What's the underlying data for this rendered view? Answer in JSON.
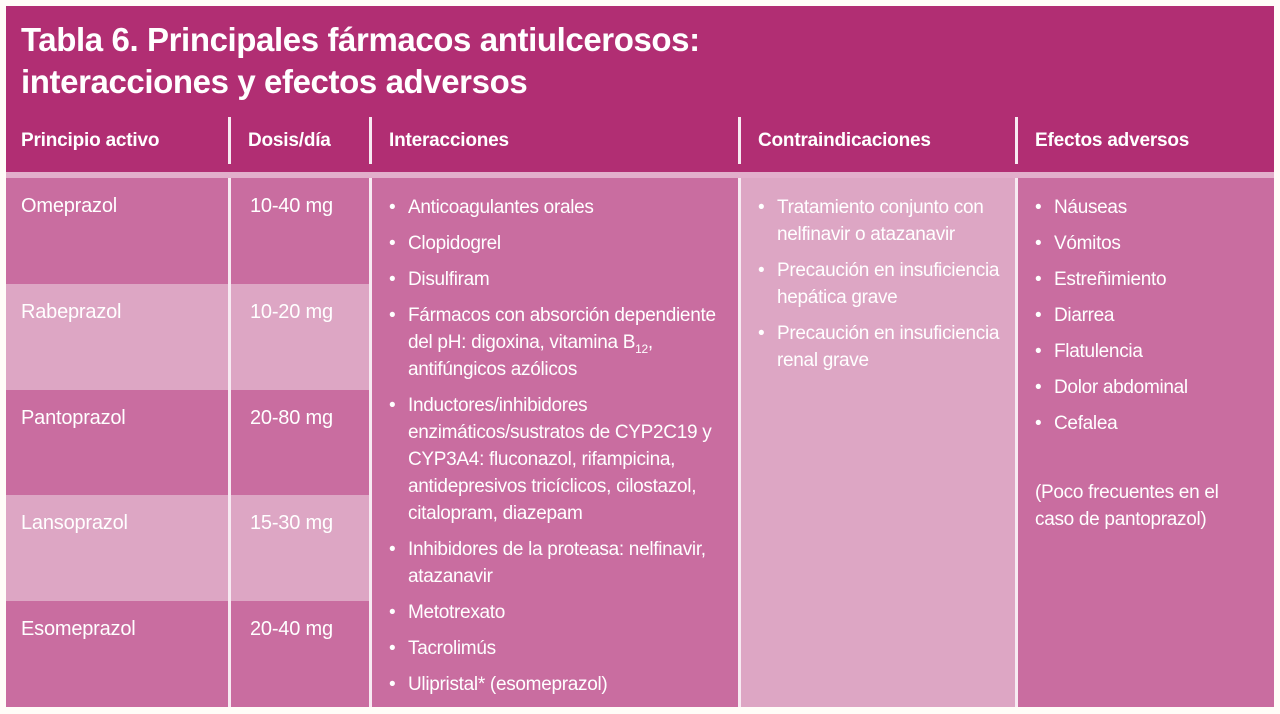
{
  "table": {
    "title_line1": "Tabla 6. Principales fármacos antiulcerosos:",
    "title_line2": "interacciones y efectos adversos",
    "bullet": "•",
    "columns": [
      "Principio activo",
      "Dosis/día",
      "Interacciones",
      "Contraindicaciones",
      "Efectos adversos"
    ],
    "rows": [
      {
        "drug": "Omeprazol",
        "dose": "10-40 mg"
      },
      {
        "drug": "Rabeprazol",
        "dose": "10-20 mg"
      },
      {
        "drug": "Pantoprazol",
        "dose": "20-80 mg"
      },
      {
        "drug": "Lansoprazol",
        "dose": "15-30 mg"
      },
      {
        "drug": "Esomeprazol",
        "dose": "20-40 mg"
      }
    ],
    "interactions": {
      "items": [
        {
          "text": "Anticoagulantes orales"
        },
        {
          "text": "Clopidogrel"
        },
        {
          "text": "Disulfiram"
        },
        {
          "pre": "Fármacos con absorción dependiente del pH: digoxina, vitamina B",
          "sub": "12",
          "post": ", antifúngicos azólicos"
        },
        {
          "text": "Inductores/inhibidores enzimáticos/sustratos de CYP2C19 y CYP3A4: fluconazol, rifampicina, antidepresivos tricíclicos, cilostazol, citalopram, diazepam"
        },
        {
          "text": "Inhibidores de la proteasa: nelfinavir, atazanavir"
        },
        {
          "text": "Metotrexato"
        },
        {
          "text": "Tacrolimús"
        },
        {
          "text": "Ulipristal* (esomeprazol)"
        }
      ]
    },
    "contraindications": [
      "Tratamiento conjunto con nelfinavir o atazanavir",
      "Precaución en insuficiencia hepática grave",
      "Precaución en insuficiencia renal grave"
    ],
    "adverse_effects": [
      "Náuseas",
      "Vómitos",
      "Estreñimiento",
      "Diarrea",
      "Flatulencia",
      "Dolor abdominal",
      "Cefalea"
    ],
    "adverse_note": "(Poco frecuentes en el caso de pantoprazol)"
  },
  "colors": {
    "header": "#b12e73",
    "row_medium": "#c96da0",
    "row_light": "#dda6c4",
    "divider_strip": "#e2aecb",
    "text": "#ffffff"
  }
}
